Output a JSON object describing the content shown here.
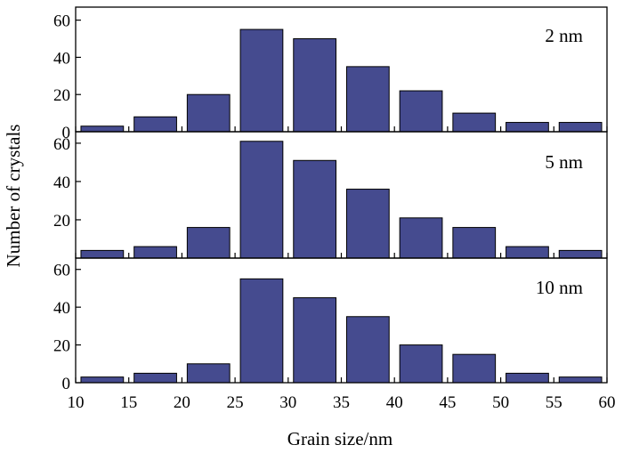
{
  "chart_data": {
    "type": "bar",
    "bar_color": "#454b8f",
    "xlabel": "Grain size/nm",
    "ylabel": "Number of crystals",
    "x_ticks": [
      10,
      15,
      20,
      25,
      30,
      35,
      40,
      45,
      50,
      55,
      60
    ],
    "xlim": [
      10,
      60
    ],
    "bin_width": 5,
    "bins": [
      [
        10,
        15
      ],
      [
        15,
        20
      ],
      [
        20,
        25
      ],
      [
        25,
        30
      ],
      [
        30,
        35
      ],
      [
        35,
        40
      ],
      [
        40,
        45
      ],
      [
        45,
        50
      ],
      [
        50,
        55
      ],
      [
        55,
        60
      ]
    ],
    "panels": [
      {
        "label": "2 nm",
        "ylim": [
          0,
          67
        ],
        "y_ticks": [
          0,
          20,
          40,
          60
        ],
        "values": [
          3,
          8,
          20,
          55,
          50,
          35,
          22,
          10,
          5,
          5
        ]
      },
      {
        "label": "5 nm",
        "ylim": [
          0,
          66
        ],
        "y_ticks": [
          20,
          40,
          60
        ],
        "values": [
          4,
          6,
          16,
          61,
          51,
          36,
          21,
          16,
          6,
          4
        ]
      },
      {
        "label": "10 nm",
        "ylim": [
          0,
          66
        ],
        "y_ticks": [
          0,
          20,
          40,
          60
        ],
        "values": [
          3,
          5,
          10,
          55,
          45,
          35,
          20,
          15,
          5,
          3
        ]
      }
    ]
  }
}
